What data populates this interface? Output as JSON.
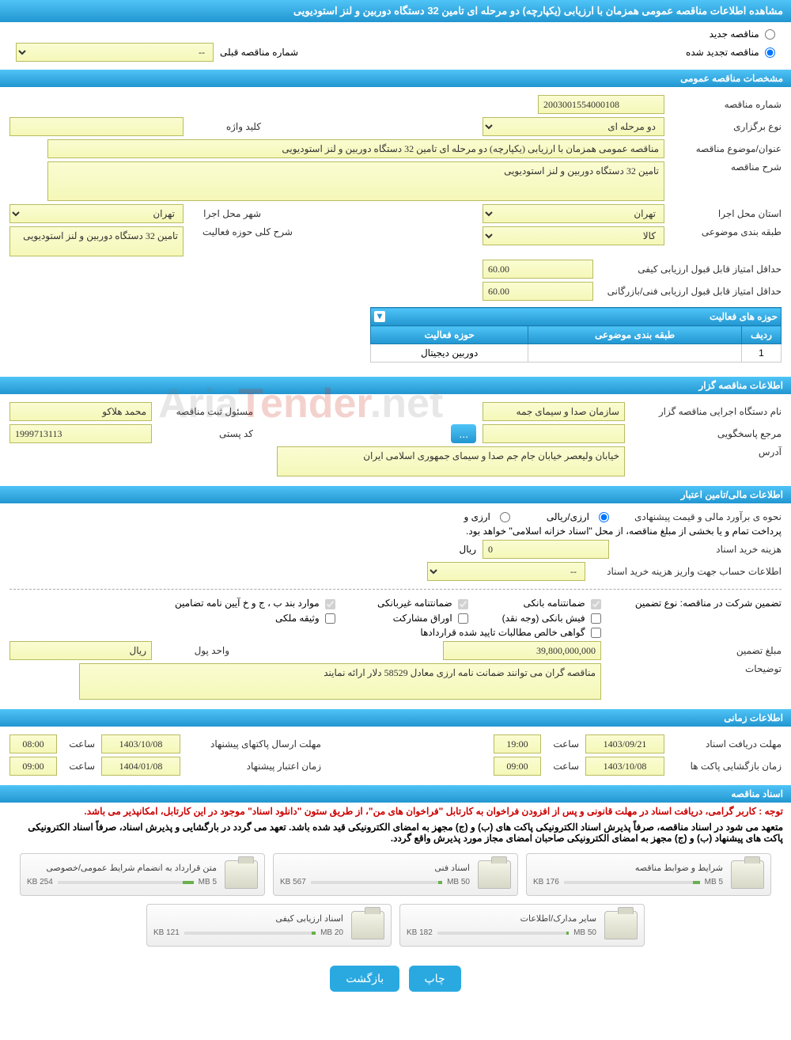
{
  "header": {
    "title": "مشاهده اطلاعات مناقصه عمومی همزمان با ارزیابی (یکپارچه) دو مرحله ای تامین 32 دستگاه دوربین و لنز استودیویی"
  },
  "top": {
    "new_tender": "مناقصه جدید",
    "renewed_tender": "مناقصه تجدید شده",
    "prev_number_label": "شماره مناقصه قبلی",
    "prev_number_value": "--"
  },
  "sec_general": "مشخصات مناقصه عمومی",
  "general": {
    "number_label": "شماره مناقصه",
    "number_value": "2003001554000108",
    "type_label": "نوع برگزاری",
    "type_value": "دو مرحله ای",
    "keyword_label": "کلید واژه",
    "keyword_value": "",
    "subject_label": "عنوان/موضوع مناقصه",
    "subject_value": "مناقصه عمومی همزمان با ارزیابی (یکپارچه) دو مرحله ای تامین 32 دستگاه دوربین و لنز استودیویی",
    "desc_label": "شرح مناقصه",
    "desc_value": "تامین 32 دستگاه دوربین و لنز استودیویی",
    "province_label": "استان محل اجرا",
    "province_value": "تهران",
    "city_label": "شهر محل اجرا",
    "city_value": "تهران",
    "category_label": "طبقه بندی موضوعی",
    "category_value": "کالا",
    "activity_desc_label": "شرح کلی حوزه فعالیت",
    "activity_desc_value": "تامین 32 دستگاه دوربین و لنز استودیویی",
    "min_quality_label": "حداقل امتیاز قابل قبول ارزیابی کیفی",
    "min_quality_value": "60.00",
    "min_tech_label": "حداقل امتیاز قابل قبول ارزیابی فنی/بازرگانی",
    "min_tech_value": "60.00"
  },
  "activities": {
    "header": "حوزه های فعالیت",
    "col_row": "ردیف",
    "col_category": "طبقه بندی موضوعی",
    "col_field": "حوزه فعالیت",
    "rows": [
      {
        "n": "1",
        "category": "",
        "field": "دوربین دیجیتال"
      }
    ]
  },
  "sec_owner": "اطلاعات مناقصه گزار",
  "owner": {
    "org_label": "نام دستگاه اجرایی مناقصه گزار",
    "org_value": "سازمان صدا و سیمای جمه",
    "registrar_label": "مسئول ثبت مناقصه",
    "registrar_value": "محمد هلاکو",
    "response_label": "مرجع پاسخگویی",
    "response_value": "",
    "browse": "...",
    "postal_label": "کد پستی",
    "postal_value": "1999713113",
    "address_label": "آدرس",
    "address_value": "خیابان ولیعصر خیابان جام جم صدا و سیمای جمهوری اسلامی ایران"
  },
  "sec_financial": "اطلاعات مالی/تامین اعتبار",
  "financial": {
    "method_label": "نحوه ی برآورد مالی و قیمت پیشنهادی",
    "method_currency1": "ارزی/ریالی",
    "method_currency2": "ارزی و",
    "payment_note": "پرداخت تمام و یا بخشی از مبلغ مناقصه، از محل \"اسناد خزانه اسلامی\" خواهد بود.",
    "cost_label": "هزینه خرید اسناد",
    "cost_value": "0",
    "cost_unit": "ریال",
    "account_label": "اطلاعات حساب جهت واریز هزینه خرید اسناد",
    "account_value": "--",
    "guarantee_header": "تضمین شرکت در مناقصه:   نوع تضمین",
    "g_bank": "ضمانتنامه بانکی",
    "g_nonbank": "ضمانتنامه غیربانکی",
    "g_clauses": "موارد بند ب ، ج و خ آیین نامه تضامین",
    "g_cash": "فیش بانکی (وجه نقد)",
    "g_shares": "اوراق مشارکت",
    "g_property": "وثیقه ملکی",
    "g_receivables": "گواهی خالص مطالبات تایید شده قراردادها",
    "guarantee_amount_label": "مبلغ تضمین",
    "guarantee_amount_value": "39,800,000,000",
    "guarantee_unit_label": "واحد پول",
    "guarantee_unit_value": "ریال",
    "notes_label": "توضیحات",
    "notes_value": "مناقصه گران می توانند ضمانت نامه ارزی معادل 58529 دلار ارائه نمایند"
  },
  "sec_time": "اطلاعات زمانی",
  "time": {
    "receive_label": "مهلت دریافت اسناد",
    "receive_date": "1403/09/21",
    "receive_time_label": "ساعت",
    "receive_time": "19:00",
    "send_label": "مهلت ارسال پاکتهای پیشنهاد",
    "send_date": "1403/10/08",
    "send_time_label": "ساعت",
    "send_time": "08:00",
    "open_label": "زمان بازگشایی پاکت ها",
    "open_date": "1403/10/08",
    "open_time_label": "ساعت",
    "open_time": "09:00",
    "valid_label": "زمان اعتبار پیشنهاد",
    "valid_date": "1404/01/08",
    "valid_time_label": "ساعت",
    "valid_time": "09:00"
  },
  "sec_docs": "اسناد مناقصه",
  "docs": {
    "notice1": "توجه : کاربر گرامی، دریافت اسناد در مهلت قانونی و پس از افزودن فراخوان به کارتابل \"فراخوان های من\"، از طریق ستون \"دانلود اسناد\" موجود در این کارتابل، امکانپذیر می باشد.",
    "notice2": "متعهد می شود در اسناد مناقصه، صرفاً پذیرش اسناد الکترونیکی پاکت های (ب) و (ج) مجهز به امضای الکترونیکی قید شده باشد. تعهد می گردد در بارگشایی و پذیرش اسناد، صرفاً اسناد الکترونیکی پاکت های پیشنهاد (ب) و (ج) مجهز به امضای الکترونیکی صاحبان امضای مجاز مورد پذیرش واقع گردد.",
    "files": [
      {
        "title": "شرایط و ضوابط مناقصه",
        "size": "176 KB",
        "quota": "5 MB",
        "pct": 5
      },
      {
        "title": "اسناد فنی",
        "size": "567 KB",
        "quota": "50 MB",
        "pct": 3
      },
      {
        "title": "متن قرارداد به انضمام شرایط عمومی/خصوصی",
        "size": "254 KB",
        "quota": "5 MB",
        "pct": 8
      },
      {
        "title": "سایر مدارک/اطلاعات",
        "size": "182 KB",
        "quota": "50 MB",
        "pct": 2
      },
      {
        "title": "اسناد ارزیابی کیفی",
        "size": "121 KB",
        "quota": "20 MB",
        "pct": 3
      }
    ]
  },
  "buttons": {
    "print": "چاپ",
    "back": "بازگشت"
  },
  "watermark": "AriaTender.net"
}
